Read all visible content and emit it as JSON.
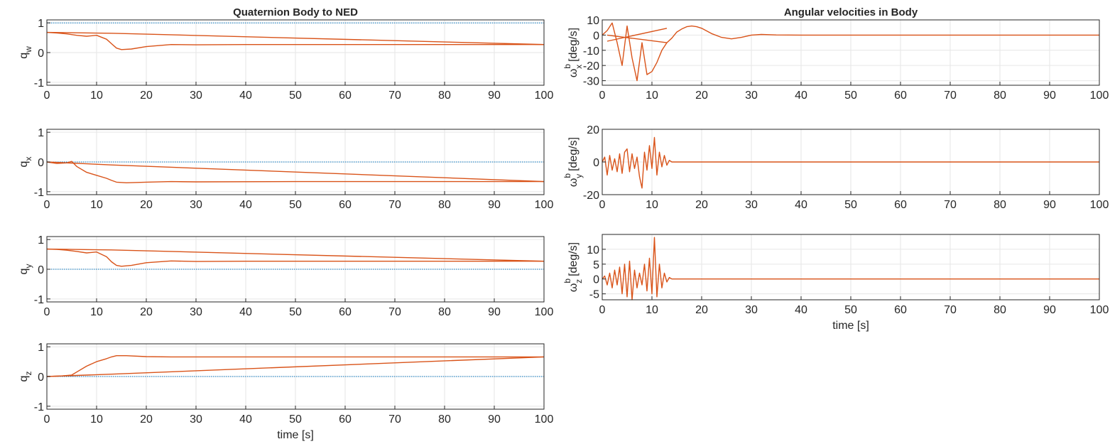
{
  "chart_data": [
    {
      "type": "line",
      "title": "Quaternion Body to NED",
      "ylabel": "q_w",
      "ylabel_main": "q",
      "ylabel_sub": "w",
      "xlabel": "",
      "xlim": [
        0,
        100
      ],
      "ylim": [
        -1.1,
        1.1
      ],
      "xticks": [
        "0",
        "10",
        "20",
        "30",
        "40",
        "50",
        "60",
        "70",
        "80",
        "90",
        "100"
      ],
      "yticks": [
        "-1",
        "0",
        "1"
      ],
      "ytick_values": [
        -1,
        0,
        1
      ],
      "grid": true,
      "series": [
        {
          "color": "#0072BD",
          "style": "dotted",
          "x": [
            0,
            100
          ],
          "y": [
            1.0,
            1.0
          ]
        },
        {
          "color": "#D95319",
          "x": [
            0,
            2,
            4,
            6,
            8,
            10,
            12,
            13,
            14,
            15,
            17,
            20,
            25,
            30,
            40,
            60,
            80,
            100
          ],
          "y": [
            0.68,
            0.66,
            0.63,
            0.58,
            0.55,
            0.58,
            0.45,
            0.3,
            0.15,
            0.1,
            0.12,
            0.2,
            0.27,
            0.26,
            0.27,
            0.27,
            0.27,
            0.27
          ]
        },
        {
          "color": "#D95319",
          "x": [
            0,
            13,
            100
          ],
          "y": [
            0.68,
            0.65,
            0.27
          ]
        }
      ]
    },
    {
      "type": "line",
      "title": "",
      "ylabel": "q_x",
      "ylabel_main": "q",
      "ylabel_sub": "x",
      "xlabel": "",
      "xlim": [
        0,
        100
      ],
      "ylim": [
        -1.1,
        1.1
      ],
      "xticks": [
        "0",
        "10",
        "20",
        "30",
        "40",
        "50",
        "60",
        "70",
        "80",
        "90",
        "100"
      ],
      "yticks": [
        "-1",
        "0",
        "1"
      ],
      "ytick_values": [
        -1,
        0,
        1
      ],
      "grid": true,
      "series": [
        {
          "color": "#0072BD",
          "style": "dotted",
          "x": [
            0,
            100
          ],
          "y": [
            0,
            0
          ]
        },
        {
          "color": "#D95319",
          "x": [
            0,
            2,
            4,
            5,
            6,
            8,
            10,
            12,
            13,
            14,
            16,
            20,
            25,
            30,
            50,
            100
          ],
          "y": [
            0,
            -0.05,
            -0.03,
            0.02,
            -0.15,
            -0.35,
            -0.45,
            -0.55,
            -0.62,
            -0.68,
            -0.7,
            -0.68,
            -0.66,
            -0.67,
            -0.66,
            -0.66
          ]
        },
        {
          "color": "#D95319",
          "x": [
            0,
            13,
            100
          ],
          "y": [
            0,
            -0.1,
            -0.66
          ]
        }
      ]
    },
    {
      "type": "line",
      "title": "",
      "ylabel": "q_y",
      "ylabel_main": "q",
      "ylabel_sub": "y",
      "xlabel": "",
      "xlim": [
        0,
        100
      ],
      "ylim": [
        -1.1,
        1.1
      ],
      "xticks": [
        "0",
        "10",
        "20",
        "30",
        "40",
        "50",
        "60",
        "70",
        "80",
        "90",
        "100"
      ],
      "yticks": [
        "-1",
        "0",
        "1"
      ],
      "ytick_values": [
        -1,
        0,
        1
      ],
      "grid": true,
      "series": [
        {
          "color": "#0072BD",
          "style": "dotted",
          "x": [
            0,
            100
          ],
          "y": [
            0,
            0
          ]
        },
        {
          "color": "#D95319",
          "x": [
            0,
            2,
            4,
            6,
            8,
            10,
            12,
            13,
            14,
            15,
            17,
            20,
            25,
            30,
            40,
            60,
            100
          ],
          "y": [
            0.68,
            0.67,
            0.64,
            0.6,
            0.55,
            0.58,
            0.42,
            0.25,
            0.13,
            0.1,
            0.13,
            0.22,
            0.28,
            0.26,
            0.27,
            0.27,
            0.27
          ]
        },
        {
          "color": "#D95319",
          "x": [
            0,
            13,
            100
          ],
          "y": [
            0.68,
            0.65,
            0.27
          ]
        }
      ]
    },
    {
      "type": "line",
      "title": "",
      "ylabel": "q_z",
      "ylabel_main": "q",
      "ylabel_sub": "z",
      "xlabel": "time [s]",
      "xlim": [
        0,
        100
      ],
      "ylim": [
        -1.1,
        1.1
      ],
      "xticks": [
        "0",
        "10",
        "20",
        "30",
        "40",
        "50",
        "60",
        "70",
        "80",
        "90",
        "100"
      ],
      "yticks": [
        "-1",
        "0",
        "1"
      ],
      "ytick_values": [
        -1,
        0,
        1
      ],
      "grid": true,
      "series": [
        {
          "color": "#0072BD",
          "style": "dotted",
          "x": [
            0,
            100
          ],
          "y": [
            0,
            0
          ]
        },
        {
          "color": "#D95319",
          "x": [
            0,
            3,
            5,
            6,
            8,
            10,
            12,
            13,
            14,
            16,
            20,
            25,
            30,
            50,
            100
          ],
          "y": [
            0,
            0.02,
            0.05,
            0.15,
            0.35,
            0.5,
            0.6,
            0.66,
            0.7,
            0.7,
            0.67,
            0.66,
            0.66,
            0.66,
            0.66
          ]
        },
        {
          "color": "#D95319",
          "x": [
            0,
            13,
            100
          ],
          "y": [
            0,
            0.08,
            0.66
          ]
        }
      ]
    },
    {
      "type": "line",
      "title": "Angular velocities in Body",
      "ylabel": "ω_x^b [deg/s]",
      "ylabel_main": "ω",
      "ylabel_sup": "b",
      "ylabel_sub": "x",
      "ylabel_unit": "[deg/s]",
      "xlabel": "",
      "xlim": [
        0,
        100
      ],
      "ylim": [
        -33,
        10
      ],
      "xticks": [
        "0",
        "10",
        "20",
        "30",
        "40",
        "50",
        "60",
        "70",
        "80",
        "90",
        "100"
      ],
      "yticks": [
        "-30",
        "-20",
        "-10",
        "0",
        "10"
      ],
      "ytick_values": [
        -30,
        -20,
        -10,
        0,
        10
      ],
      "grid": true,
      "series": [
        {
          "color": "#D95319",
          "x": [
            0,
            1,
            2,
            3,
            4,
            5,
            6,
            7,
            8,
            9,
            10,
            11,
            12,
            13,
            14,
            15,
            16,
            17,
            18,
            19,
            20,
            22,
            24,
            26,
            28,
            30,
            32,
            35,
            40,
            50,
            100
          ],
          "y": [
            0,
            3,
            8,
            -5,
            -20,
            6,
            -15,
            -30,
            -5,
            -26,
            -24,
            -18,
            -10,
            -5,
            -2,
            2,
            4,
            5.5,
            6,
            5.5,
            4.5,
            1,
            -1.5,
            -2.5,
            -1.5,
            0,
            0.4,
            0.1,
            0,
            0,
            0
          ]
        },
        {
          "color": "#D95319",
          "x": [
            1,
            13
          ],
          "y": [
            -4,
            4.5
          ]
        },
        {
          "color": "#D95319",
          "x": [
            1,
            13
          ],
          "y": [
            0,
            -5
          ]
        }
      ]
    },
    {
      "type": "line",
      "title": "",
      "ylabel": "ω_y^b [deg/s]",
      "ylabel_main": "ω",
      "ylabel_sup": "b",
      "ylabel_sub": "y",
      "ylabel_unit": "[deg/s]",
      "xlabel": "",
      "xlim": [
        0,
        100
      ],
      "ylim": [
        -20,
        20
      ],
      "xticks": [
        "0",
        "10",
        "20",
        "30",
        "40",
        "50",
        "60",
        "70",
        "80",
        "90",
        "100"
      ],
      "yticks": [
        "-20",
        "0",
        "20"
      ],
      "ytick_values": [
        -20,
        0,
        20
      ],
      "grid": true,
      "series": [
        {
          "color": "#D95319",
          "x": [
            0,
            0.5,
            1,
            1.5,
            2,
            2.5,
            3,
            3.5,
            4,
            4.5,
            5,
            5.5,
            6,
            6.5,
            7,
            7.5,
            8,
            8.5,
            9,
            9.5,
            10,
            10.5,
            11,
            11.5,
            12,
            12.5,
            13,
            13.5,
            14,
            100
          ],
          "y": [
            0,
            3,
            -8,
            4,
            -5,
            2,
            -6,
            5,
            -7,
            6,
            8,
            -6,
            5,
            -4,
            3,
            -9,
            -16,
            6,
            -5,
            10,
            -4,
            15,
            -8,
            6,
            -3,
            4,
            -2,
            1,
            0,
            0
          ]
        }
      ]
    },
    {
      "type": "line",
      "title": "",
      "ylabel": "ω_z^b [deg/s]",
      "ylabel_main": "ω",
      "ylabel_sup": "b",
      "ylabel_sub": "z",
      "ylabel_unit": "[deg/s]",
      "xlabel": "time [s]",
      "xlim": [
        0,
        100
      ],
      "ylim": [
        -7,
        15
      ],
      "xticks": [
        "0",
        "10",
        "20",
        "30",
        "40",
        "50",
        "60",
        "70",
        "80",
        "90",
        "100"
      ],
      "yticks": [
        "-5",
        "0",
        "5",
        "10"
      ],
      "ytick_values": [
        -5,
        0,
        5,
        10
      ],
      "grid": true,
      "series": [
        {
          "color": "#D95319",
          "x": [
            0,
            0.5,
            1,
            1.5,
            2,
            2.5,
            3,
            3.5,
            4,
            4.5,
            5,
            5.5,
            6,
            6.5,
            7,
            7.5,
            8,
            8.5,
            9,
            9.5,
            10,
            10.5,
            11,
            11.5,
            12,
            12.5,
            13,
            13.5,
            14,
            100
          ],
          "y": [
            0,
            1,
            -2,
            2,
            -3,
            3,
            -2,
            4,
            -5,
            5,
            -6,
            6,
            -7,
            3,
            -3,
            2,
            -2,
            5,
            -4,
            7,
            -5,
            14,
            -6,
            5,
            -3,
            2,
            -1,
            0.5,
            0,
            0
          ]
        }
      ]
    }
  ]
}
